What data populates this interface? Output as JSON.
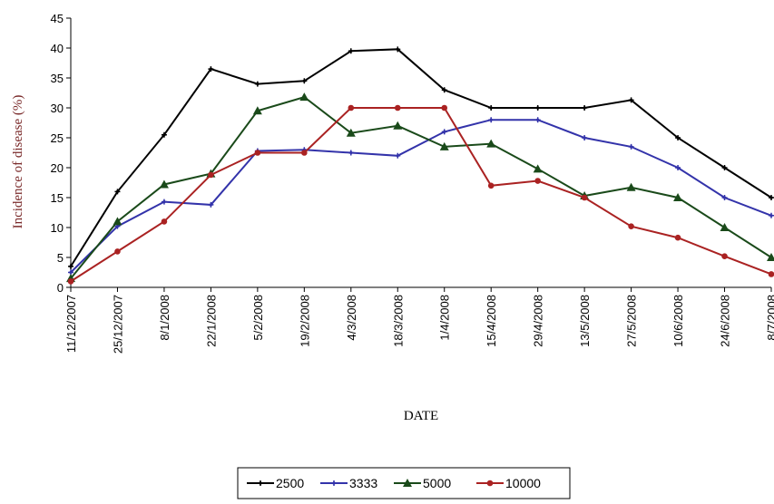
{
  "chart_data": {
    "type": "line",
    "title": "",
    "xlabel": "DATE",
    "ylabel": "Incidence of disease (%)",
    "ylim": [
      0,
      45
    ],
    "yticks": [
      "0",
      "5",
      "10",
      "15",
      "20",
      "25",
      "30",
      "35",
      "40",
      "45"
    ],
    "categories": [
      "11/12/2007",
      "25/12/2007",
      "8/1/2008",
      "22/1/2008",
      "5/2/2008",
      "19/2/2008",
      "4/3/2008",
      "18/3/2008",
      "1/4/2008",
      "15/4/2008",
      "29/4/2008",
      "13/5/2008",
      "27/5/2008",
      "10/6/2008",
      "24/6/2008",
      "8/7/2008"
    ],
    "grid": false,
    "legend_position": "bottom",
    "series": [
      {
        "name": "2500",
        "color": "#000000",
        "marker": "plus",
        "values": [
          3.5,
          16,
          25.5,
          36.5,
          34,
          34.5,
          39.5,
          39.8,
          33,
          30,
          30,
          30,
          31.3,
          25,
          20,
          15
        ]
      },
      {
        "name": "3333",
        "color": "#3333aa",
        "marker": "plus",
        "values": [
          2.5,
          10.2,
          14.3,
          13.8,
          22.8,
          23,
          22.5,
          22,
          26,
          28,
          28,
          25,
          23.5,
          20,
          15,
          12
        ]
      },
      {
        "name": "5000",
        "color": "#1a4a1a",
        "marker": "triangle",
        "values": [
          1.5,
          11,
          17.2,
          19,
          29.5,
          31.8,
          25.8,
          27,
          23.5,
          24,
          19.8,
          15.3,
          16.7,
          15,
          10,
          5
        ]
      },
      {
        "name": "10000",
        "color": "#aa2222",
        "marker": "circle",
        "values": [
          1,
          6,
          11,
          18.8,
          22.5,
          22.5,
          30,
          30,
          30,
          17,
          17.8,
          15,
          10.2,
          8.3,
          5.2,
          2.2
        ]
      }
    ]
  }
}
